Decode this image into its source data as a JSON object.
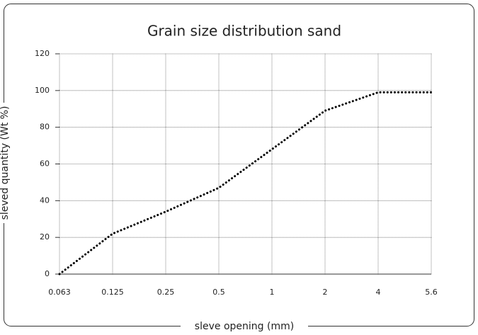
{
  "chart_data": {
    "type": "line",
    "title": "Grain size distribution sand",
    "x_label": "sleve opening (mm)",
    "y_label": "sleved quantity (Wt %)",
    "categories": [
      "0.063",
      "0.125",
      "0.25",
      "0.5",
      "1",
      "2",
      "4",
      "5.6"
    ],
    "series": [
      {
        "name": "sand",
        "color": "#000000",
        "values": [
          0,
          22,
          34,
          47,
          68,
          89,
          99,
          99
        ]
      }
    ],
    "ylim": [
      0,
      120
    ],
    "yticks": [
      0,
      20,
      40,
      60,
      80,
      100,
      120
    ],
    "grid": true
  }
}
